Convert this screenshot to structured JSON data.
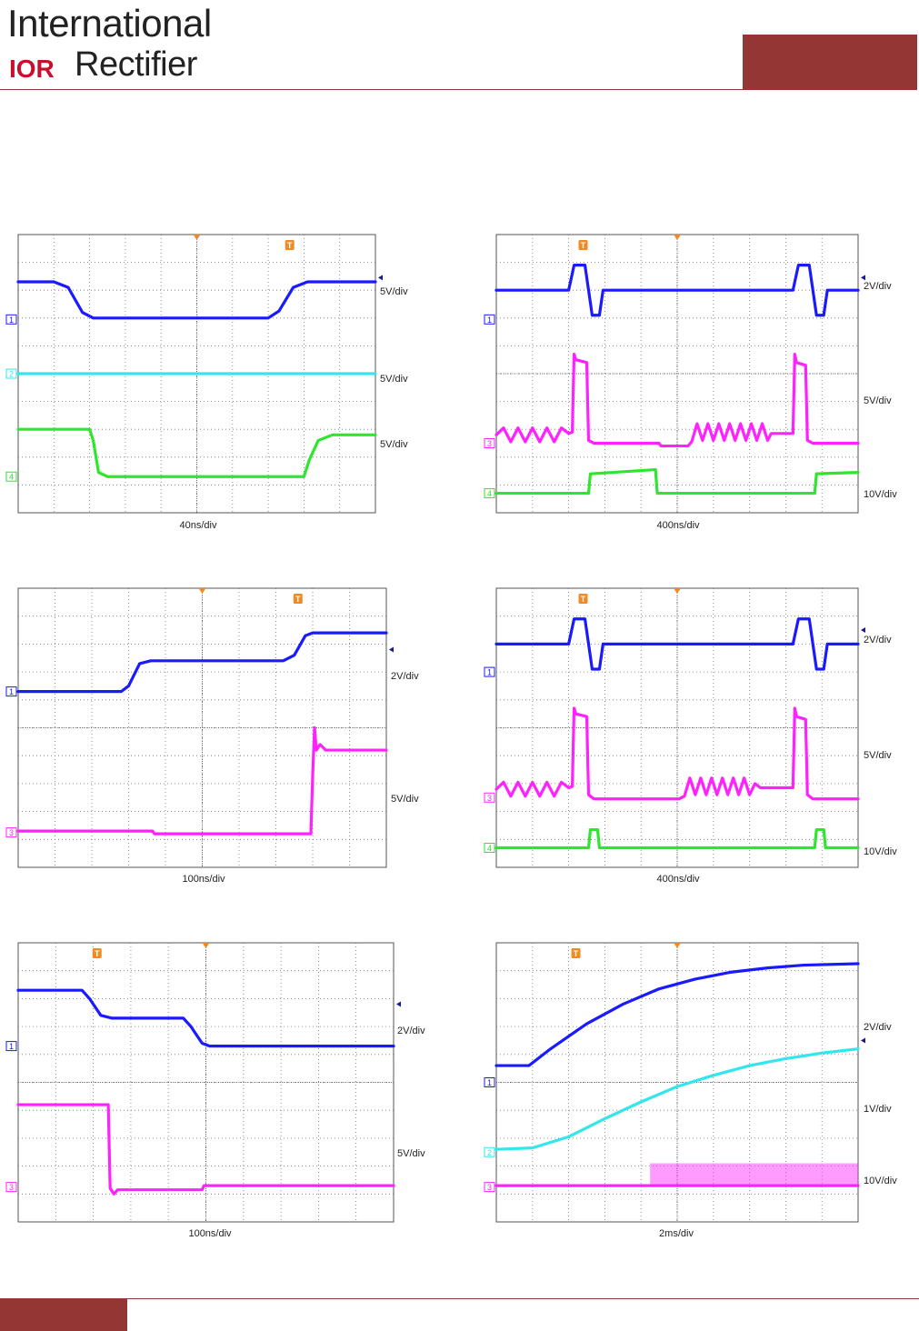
{
  "header": {
    "logo_line1": "International",
    "logo_mark": "IOR",
    "logo_line2": "Rectifier",
    "accent_color": "#943634"
  },
  "colors": {
    "ch1": "#1a1aff",
    "ch2": "#33e6ee",
    "ch3": "#ff22ff",
    "ch4": "#2ee62e",
    "trigger": "#f08a24"
  },
  "scopes": [
    {
      "id": "scope1",
      "timebase": "40ns/div",
      "trigger_pos": 7.6,
      "channels": [
        {
          "ch": 1,
          "color": "ch1",
          "ref_div": 6.95,
          "vdiv": "5V/div",
          "trace": [
            [
              0,
              8.3
            ],
            [
              1.0,
              8.3
            ],
            [
              1.4,
              8.1
            ],
            [
              1.8,
              7.2
            ],
            [
              2.1,
              7.0
            ],
            [
              7.0,
              7.0
            ],
            [
              7.3,
              7.25
            ],
            [
              7.7,
              8.1
            ],
            [
              8.1,
              8.3
            ],
            [
              10,
              8.3
            ]
          ]
        },
        {
          "ch": 2,
          "color": "ch2",
          "ref_div": 5.0,
          "vdiv": "5V/div",
          "trace": [
            [
              0,
              5.0
            ],
            [
              10,
              5.0
            ]
          ]
        },
        {
          "ch": 4,
          "color": "ch4",
          "ref_div": 1.3,
          "vdiv": "5V/div",
          "trace": [
            [
              0,
              3.0
            ],
            [
              2.0,
              3.0
            ],
            [
              2.1,
              2.6
            ],
            [
              2.25,
              1.45
            ],
            [
              2.5,
              1.3
            ],
            [
              8.0,
              1.3
            ],
            [
              8.15,
              1.9
            ],
            [
              8.4,
              2.6
            ],
            [
              8.8,
              2.8
            ],
            [
              10,
              2.8
            ]
          ]
        }
      ]
    },
    {
      "id": "scope2",
      "timebase": "400ns/div",
      "trigger_pos": 2.4,
      "channels": [
        {
          "ch": 1,
          "color": "ch1",
          "ref_div": 6.95,
          "vdiv": "2V/div",
          "trace": [
            [
              0,
              8.0
            ],
            [
              2.0,
              8.0
            ],
            [
              2.15,
              8.9
            ],
            [
              2.45,
              8.9
            ],
            [
              2.55,
              8.0
            ],
            [
              2.65,
              7.1
            ],
            [
              2.85,
              7.1
            ],
            [
              2.95,
              8.0
            ],
            [
              8.2,
              8.0
            ],
            [
              8.35,
              8.9
            ],
            [
              8.65,
              8.9
            ],
            [
              8.75,
              8.0
            ],
            [
              8.85,
              7.1
            ],
            [
              9.05,
              7.1
            ],
            [
              9.15,
              8.0
            ],
            [
              10,
              8.0
            ]
          ]
        },
        {
          "ch": 3,
          "color": "ch3",
          "ref_div": 2.5,
          "vdiv": "5V/div",
          "trace": [
            [
              0,
              2.8
            ],
            [
              0.2,
              3.05
            ],
            [
              0.4,
              2.55
            ],
            [
              0.6,
              3.05
            ],
            [
              0.8,
              2.55
            ],
            [
              1.0,
              3.05
            ],
            [
              1.2,
              2.55
            ],
            [
              1.4,
              3.05
            ],
            [
              1.6,
              2.55
            ],
            [
              1.8,
              3.05
            ],
            [
              2.0,
              2.85
            ],
            [
              2.1,
              2.9
            ],
            [
              2.15,
              5.7
            ],
            [
              2.2,
              5.5
            ],
            [
              2.5,
              5.4
            ],
            [
              2.55,
              2.6
            ],
            [
              2.7,
              2.5
            ],
            [
              4.5,
              2.5
            ],
            [
              4.55,
              2.4
            ],
            [
              5.3,
              2.4
            ],
            [
              5.4,
              2.55
            ],
            [
              5.55,
              3.2
            ],
            [
              5.7,
              2.6
            ],
            [
              5.85,
              3.2
            ],
            [
              6.0,
              2.6
            ],
            [
              6.15,
              3.2
            ],
            [
              6.3,
              2.6
            ],
            [
              6.45,
              3.2
            ],
            [
              6.6,
              2.6
            ],
            [
              6.75,
              3.2
            ],
            [
              6.9,
              2.6
            ],
            [
              7.05,
              3.2
            ],
            [
              7.2,
              2.6
            ],
            [
              7.35,
              3.2
            ],
            [
              7.5,
              2.6
            ],
            [
              7.6,
              2.85
            ],
            [
              8.2,
              2.85
            ],
            [
              8.25,
              5.7
            ],
            [
              8.3,
              5.4
            ],
            [
              8.55,
              5.3
            ],
            [
              8.6,
              2.6
            ],
            [
              8.75,
              2.5
            ],
            [
              10,
              2.5
            ]
          ]
        },
        {
          "ch": 4,
          "color": "ch4",
          "ref_div": 0.7,
          "vdiv": "10V/div",
          "trace": [
            [
              0,
              0.7
            ],
            [
              2.55,
              0.7
            ],
            [
              2.6,
              1.4
            ],
            [
              4.4,
              1.55
            ],
            [
              4.45,
              0.7
            ],
            [
              8.8,
              0.7
            ],
            [
              8.85,
              1.4
            ],
            [
              10,
              1.45
            ]
          ]
        }
      ]
    },
    {
      "id": "scope3",
      "timebase": "100ns/div",
      "trigger_pos": 7.6,
      "channels": [
        {
          "ch": 1,
          "color": "ch1",
          "ref_div": 6.3,
          "vdiv": "2V/div",
          "trace": [
            [
              0,
              6.3
            ],
            [
              2.8,
              6.3
            ],
            [
              3.0,
              6.5
            ],
            [
              3.3,
              7.3
            ],
            [
              3.6,
              7.4
            ],
            [
              7.2,
              7.4
            ],
            [
              7.5,
              7.6
            ],
            [
              7.8,
              8.3
            ],
            [
              8.0,
              8.4
            ],
            [
              10,
              8.4
            ]
          ]
        },
        {
          "ch": 3,
          "color": "ch3",
          "ref_div": 1.25,
          "vdiv": "5V/div",
          "trace": [
            [
              0,
              1.3
            ],
            [
              3.65,
              1.3
            ],
            [
              3.7,
              1.2
            ],
            [
              7.95,
              1.2
            ],
            [
              8.0,
              3.3
            ],
            [
              8.05,
              5.0
            ],
            [
              8.1,
              4.2
            ],
            [
              8.2,
              4.4
            ],
            [
              8.35,
              4.2
            ],
            [
              10,
              4.2
            ]
          ]
        }
      ]
    },
    {
      "id": "scope4",
      "timebase": "400ns/div",
      "trigger_pos": 2.4,
      "channels": [
        {
          "ch": 1,
          "color": "ch1",
          "ref_div": 7.0,
          "vdiv": "2V/div",
          "trace": [
            [
              0,
              8.0
            ],
            [
              2.0,
              8.0
            ],
            [
              2.15,
              8.9
            ],
            [
              2.45,
              8.9
            ],
            [
              2.55,
              8.0
            ],
            [
              2.65,
              7.1
            ],
            [
              2.85,
              7.1
            ],
            [
              2.95,
              8.0
            ],
            [
              8.2,
              8.0
            ],
            [
              8.35,
              8.9
            ],
            [
              8.65,
              8.9
            ],
            [
              8.75,
              8.0
            ],
            [
              8.85,
              7.1
            ],
            [
              9.05,
              7.1
            ],
            [
              9.15,
              8.0
            ],
            [
              10,
              8.0
            ]
          ]
        },
        {
          "ch": 3,
          "color": "ch3",
          "ref_div": 2.5,
          "vdiv": "5V/div",
          "trace": [
            [
              0,
              2.8
            ],
            [
              0.2,
              3.05
            ],
            [
              0.4,
              2.55
            ],
            [
              0.6,
              3.05
            ],
            [
              0.8,
              2.55
            ],
            [
              1.0,
              3.05
            ],
            [
              1.2,
              2.55
            ],
            [
              1.4,
              3.05
            ],
            [
              1.6,
              2.55
            ],
            [
              1.8,
              3.05
            ],
            [
              2.0,
              2.85
            ],
            [
              2.1,
              2.9
            ],
            [
              2.15,
              5.7
            ],
            [
              2.2,
              5.5
            ],
            [
              2.5,
              5.4
            ],
            [
              2.55,
              2.6
            ],
            [
              2.7,
              2.45
            ],
            [
              5.05,
              2.45
            ],
            [
              5.2,
              2.55
            ],
            [
              5.35,
              3.2
            ],
            [
              5.5,
              2.6
            ],
            [
              5.65,
              3.2
            ],
            [
              5.8,
              2.6
            ],
            [
              5.95,
              3.2
            ],
            [
              6.1,
              2.6
            ],
            [
              6.25,
              3.2
            ],
            [
              6.4,
              2.6
            ],
            [
              6.55,
              3.2
            ],
            [
              6.7,
              2.6
            ],
            [
              6.85,
              3.2
            ],
            [
              7.0,
              2.6
            ],
            [
              7.15,
              3.0
            ],
            [
              7.3,
              2.85
            ],
            [
              8.2,
              2.85
            ],
            [
              8.25,
              5.7
            ],
            [
              8.3,
              5.4
            ],
            [
              8.55,
              5.3
            ],
            [
              8.6,
              2.6
            ],
            [
              8.75,
              2.45
            ],
            [
              10,
              2.45
            ]
          ]
        },
        {
          "ch": 4,
          "color": "ch4",
          "ref_div": 0.7,
          "vdiv": "10V/div",
          "trace": [
            [
              0,
              0.7
            ],
            [
              2.55,
              0.7
            ],
            [
              2.6,
              1.35
            ],
            [
              2.8,
              1.35
            ],
            [
              2.85,
              0.7
            ],
            [
              8.8,
              0.7
            ],
            [
              8.85,
              1.35
            ],
            [
              9.05,
              1.35
            ],
            [
              9.1,
              0.7
            ],
            [
              10,
              0.7
            ]
          ]
        }
      ]
    },
    {
      "id": "scope5",
      "timebase": "100ns/div",
      "trigger_pos": 2.1,
      "channels": [
        {
          "ch": 1,
          "color": "ch1",
          "ref_div": 6.3,
          "vdiv": "2V/div",
          "trace": [
            [
              0,
              8.3
            ],
            [
              1.7,
              8.3
            ],
            [
              1.9,
              8.0
            ],
            [
              2.2,
              7.4
            ],
            [
              2.5,
              7.3
            ],
            [
              4.4,
              7.3
            ],
            [
              4.6,
              7.0
            ],
            [
              4.9,
              6.4
            ],
            [
              5.1,
              6.3
            ],
            [
              10,
              6.3
            ]
          ]
        },
        {
          "ch": 3,
          "color": "ch3",
          "ref_div": 1.25,
          "vdiv": "5V/div",
          "trace": [
            [
              0,
              4.2
            ],
            [
              2.4,
              4.2
            ],
            [
              2.45,
              1.2
            ],
            [
              2.55,
              1.0
            ],
            [
              2.65,
              1.15
            ],
            [
              4.9,
              1.15
            ],
            [
              4.95,
              1.3
            ],
            [
              10,
              1.3
            ]
          ]
        }
      ]
    },
    {
      "id": "scope6",
      "timebase": "2ms/div",
      "trigger_pos": 2.2,
      "channels": [
        {
          "ch": 1,
          "color": "ch1",
          "ref_div": 5.0,
          "vdiv": "2V/div",
          "trace": [
            [
              0,
              5.6
            ],
            [
              0.9,
              5.6
            ],
            [
              1.5,
              6.2
            ],
            [
              2.5,
              7.1
            ],
            [
              3.5,
              7.8
            ],
            [
              4.5,
              8.35
            ],
            [
              5.5,
              8.7
            ],
            [
              6.5,
              8.95
            ],
            [
              7.5,
              9.1
            ],
            [
              8.5,
              9.2
            ],
            [
              10,
              9.25
            ]
          ]
        },
        {
          "ch": 2,
          "color": "ch2",
          "ref_div": 2.5,
          "vdiv": "1V/div",
          "trace": [
            [
              0,
              2.6
            ],
            [
              1.0,
              2.65
            ],
            [
              2.0,
              3.05
            ],
            [
              3.0,
              3.7
            ],
            [
              4.0,
              4.3
            ],
            [
              5.0,
              4.85
            ],
            [
              6.0,
              5.25
            ],
            [
              7.0,
              5.6
            ],
            [
              8.0,
              5.85
            ],
            [
              9.0,
              6.05
            ],
            [
              10,
              6.2
            ]
          ]
        },
        {
          "ch": 3,
          "color": "ch3",
          "ref_div": 1.25,
          "vdiv": "10V/div",
          "trace": [
            [
              0,
              1.3
            ],
            [
              4.25,
              1.3
            ],
            [
              10,
              1.3
            ]
          ],
          "band": [
            4.25,
            1.3,
            10,
            2.1
          ]
        }
      ]
    }
  ]
}
